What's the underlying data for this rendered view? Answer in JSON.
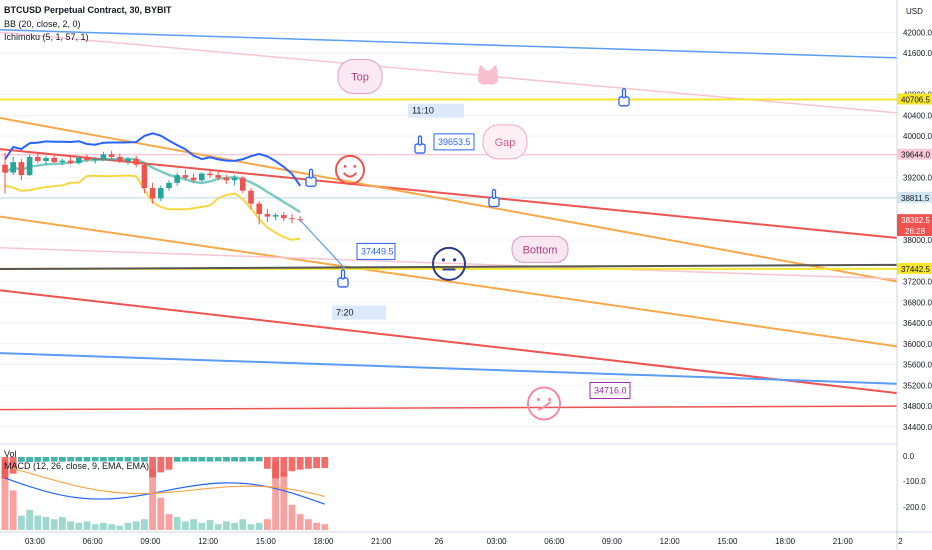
{
  "header": {
    "symbol": "BTCUSD Perpetual Contract, 30, BYBIT",
    "bb": "BB (20, close, 2, 0)",
    "ichimoku": "Ichimoku (5, 1, 57, 1)",
    "currency": "USD"
  },
  "volume_pane": {
    "vol_label": "Vol",
    "macd_label": "MACD (12, 26, close, 9, EMA, EMA)",
    "ticks": [
      "0.0",
      "-100.0",
      "-200.0"
    ],
    "bars": [
      {
        "v": 0.98,
        "c": "red"
      },
      {
        "v": 0.55,
        "c": "red"
      },
      {
        "v": 0.2,
        "c": "green"
      },
      {
        "v": 0.28,
        "c": "green"
      },
      {
        "v": 0.2,
        "c": "green"
      },
      {
        "v": 0.18,
        "c": "green"
      },
      {
        "v": 0.15,
        "c": "green"
      },
      {
        "v": 0.18,
        "c": "green"
      },
      {
        "v": 0.12,
        "c": "green"
      },
      {
        "v": 0.1,
        "c": "green"
      },
      {
        "v": 0.12,
        "c": "green"
      },
      {
        "v": 0.08,
        "c": "green"
      },
      {
        "v": 0.1,
        "c": "green"
      },
      {
        "v": 0.08,
        "c": "green"
      },
      {
        "v": 0.06,
        "c": "green"
      },
      {
        "v": 0.1,
        "c": "green"
      },
      {
        "v": 0.12,
        "c": "green"
      },
      {
        "v": 0.15,
        "c": "green"
      },
      {
        "v": 0.85,
        "c": "red"
      },
      {
        "v": 0.45,
        "c": "red"
      },
      {
        "v": 0.22,
        "c": "red"
      },
      {
        "v": 0.18,
        "c": "green"
      },
      {
        "v": 0.12,
        "c": "green"
      },
      {
        "v": 0.15,
        "c": "green"
      },
      {
        "v": 0.1,
        "c": "green"
      },
      {
        "v": 0.14,
        "c": "green"
      },
      {
        "v": 0.08,
        "c": "green"
      },
      {
        "v": 0.12,
        "c": "green"
      },
      {
        "v": 0.1,
        "c": "green"
      },
      {
        "v": 0.15,
        "c": "green"
      },
      {
        "v": 0.08,
        "c": "green"
      },
      {
        "v": 0.1,
        "c": "green"
      },
      {
        "v": 0.15,
        "c": "red"
      },
      {
        "v": 0.95,
        "c": "red"
      },
      {
        "v": 0.8,
        "c": "red"
      },
      {
        "v": 0.35,
        "c": "red"
      },
      {
        "v": 0.22,
        "c": "red"
      },
      {
        "v": 0.15,
        "c": "red"
      },
      {
        "v": 0.1,
        "c": "red"
      },
      {
        "v": 0.08,
        "c": "red"
      }
    ]
  },
  "price_scale": [
    "42000.0",
    "41600.0",
    "40800.0",
    "40400.0",
    "40000.0",
    "39200.0",
    "38000.0",
    "37200.0",
    "36800.0",
    "36400.0",
    "36000.0",
    "35600.0",
    "35200.0",
    "34800.0",
    "34400.0"
  ],
  "price_badges": [
    {
      "price": 40706.5,
      "text": "40706.5",
      "bg": "#f5e52c",
      "fg": "#131722"
    },
    {
      "price": 39644.0,
      "text": "39644.0",
      "bg": "#f8c9d6",
      "fg": "#131722"
    },
    {
      "price": 38811.5,
      "text": "38811.5",
      "bg": "#cfe6f2",
      "fg": "#131722"
    },
    {
      "price": 38382.5,
      "text": "38382.5",
      "text2": "26:28",
      "bg": "#ef5350",
      "fg": "#ffffff"
    },
    {
      "price": 37442.5,
      "text": "37442.5",
      "bg": "#f5e52c",
      "fg": "#131722"
    }
  ],
  "time_labels": [
    "03:00",
    "06:00",
    "09:00",
    "12:00",
    "15:00",
    "18:00",
    "21:00",
    "26",
    "03:00",
    "06:00",
    "09:00",
    "12:00",
    "15:00",
    "18:00",
    "21:00",
    "2"
  ],
  "annotations": [
    {
      "id": "top",
      "text": "Top",
      "price": 41150,
      "color": "#b0417f"
    },
    {
      "id": "gap",
      "text": "Gap",
      "price": 39890,
      "color": "#e05a8a"
    },
    {
      "id": "bottom",
      "text": "Bottom",
      "price": 37820,
      "color": "#b0417f"
    },
    {
      "id": "callout-39653",
      "text": "39653.5",
      "price": 39890,
      "color": "#2962ff"
    },
    {
      "id": "callout-37449",
      "text": "37449.5",
      "price": 37780,
      "color": "#2962ff"
    },
    {
      "id": "callout-34716",
      "text": "34716.0",
      "price": 35100,
      "color": "#9c27b0"
    },
    {
      "id": "time-1110",
      "text": "11:10",
      "price": 40490,
      "color": "#131722"
    },
    {
      "id": "time-720",
      "text": "7:20",
      "price": 36600,
      "color": "#131722"
    }
  ],
  "chart_data": {
    "type": "candlestick",
    "symbol": "BTCUSD Perpetual Contract",
    "interval": "30",
    "exchange": "BYBIT",
    "indicators": [
      "BB (20, close, 2, 0)",
      "Ichimoku (5, 1, 57, 1)",
      "Vol",
      "MACD (12, 26, close, 9, EMA, EMA)"
    ],
    "ylim": [
      34300,
      42200
    ],
    "candles": [
      {
        "o": 39450,
        "h": 39680,
        "l": 38900,
        "c": 39300
      },
      {
        "o": 39300,
        "h": 39600,
        "l": 39250,
        "c": 39500
      },
      {
        "o": 39500,
        "h": 39560,
        "l": 39150,
        "c": 39250
      },
      {
        "o": 39250,
        "h": 39650,
        "l": 39230,
        "c": 39600
      },
      {
        "o": 39600,
        "h": 39700,
        "l": 39480,
        "c": 39520
      },
      {
        "o": 39520,
        "h": 39620,
        "l": 39450,
        "c": 39580
      },
      {
        "o": 39580,
        "h": 39640,
        "l": 39480,
        "c": 39500
      },
      {
        "o": 39500,
        "h": 39560,
        "l": 39440,
        "c": 39530
      },
      {
        "o": 39530,
        "h": 39600,
        "l": 39460,
        "c": 39480
      },
      {
        "o": 39480,
        "h": 39620,
        "l": 39450,
        "c": 39580
      },
      {
        "o": 39580,
        "h": 39650,
        "l": 39500,
        "c": 39540
      },
      {
        "o": 39540,
        "h": 39600,
        "l": 39470,
        "c": 39560
      },
      {
        "o": 39560,
        "h": 39700,
        "l": 39520,
        "c": 39650
      },
      {
        "o": 39650,
        "h": 39720,
        "l": 39550,
        "c": 39600
      },
      {
        "o": 39600,
        "h": 39660,
        "l": 39480,
        "c": 39520
      },
      {
        "o": 39520,
        "h": 39600,
        "l": 39450,
        "c": 39560
      },
      {
        "o": 39560,
        "h": 39620,
        "l": 39400,
        "c": 39450
      },
      {
        "o": 39450,
        "h": 39500,
        "l": 38900,
        "c": 39000
      },
      {
        "o": 39000,
        "h": 39100,
        "l": 38700,
        "c": 38800
      },
      {
        "o": 38800,
        "h": 39050,
        "l": 38750,
        "c": 39000
      },
      {
        "o": 39000,
        "h": 39150,
        "l": 38950,
        "c": 39100
      },
      {
        "o": 39100,
        "h": 39300,
        "l": 39050,
        "c": 39250
      },
      {
        "o": 39250,
        "h": 39350,
        "l": 39150,
        "c": 39200
      },
      {
        "o": 39200,
        "h": 39280,
        "l": 39100,
        "c": 39150
      },
      {
        "o": 39150,
        "h": 39300,
        "l": 39120,
        "c": 39280
      },
      {
        "o": 39280,
        "h": 39350,
        "l": 39200,
        "c": 39250
      },
      {
        "o": 39250,
        "h": 39330,
        "l": 39150,
        "c": 39200
      },
      {
        "o": 39200,
        "h": 39260,
        "l": 39080,
        "c": 39150
      },
      {
        "o": 39150,
        "h": 39250,
        "l": 39050,
        "c": 39200
      },
      {
        "o": 39200,
        "h": 39240,
        "l": 38900,
        "c": 38950
      },
      {
        "o": 38950,
        "h": 39000,
        "l": 38600,
        "c": 38700
      },
      {
        "o": 38700,
        "h": 38750,
        "l": 38300,
        "c": 38500
      },
      {
        "o": 38500,
        "h": 38600,
        "l": 38350,
        "c": 38450
      },
      {
        "o": 38450,
        "h": 38520,
        "l": 38380,
        "c": 38480
      },
      {
        "o": 38480,
        "h": 38540,
        "l": 38360,
        "c": 38420
      },
      {
        "o": 38420,
        "h": 38500,
        "l": 38320,
        "c": 38400
      },
      {
        "o": 38400,
        "h": 38460,
        "l": 38340,
        "c": 38382.5
      }
    ]
  }
}
